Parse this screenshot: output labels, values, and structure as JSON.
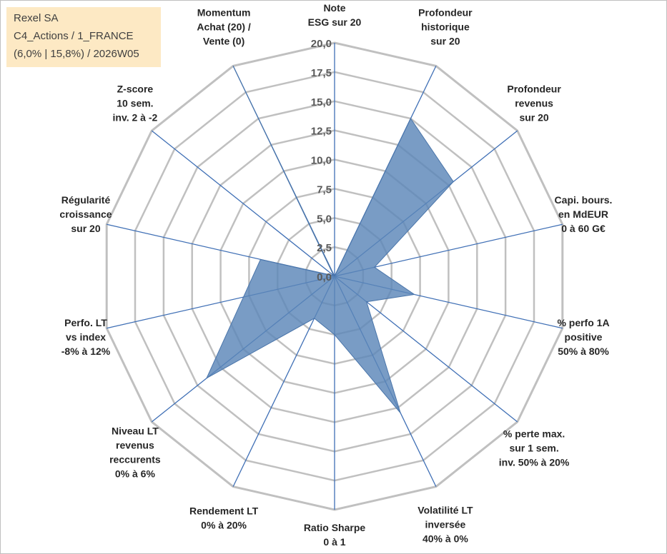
{
  "info": {
    "line1": "Rexel SA",
    "line2": "C4_Actions / 1_FRANCE",
    "line3": "(6,0% | 15,8%) / 2026W05"
  },
  "colors": {
    "grid": "#c0c0c0",
    "spokes": "#3f6fb5",
    "area_fill": "#5b86b8",
    "area_stroke": "#4a75aa",
    "info_bg": "#fde9c4"
  },
  "chart_data": {
    "type": "radar",
    "title": "",
    "r_ticks": [
      "0,0",
      "2,5",
      "5,0",
      "7,5",
      "10,0",
      "12,5",
      "15,0",
      "17,5",
      "20,0"
    ],
    "rlim": [
      0,
      20
    ],
    "grid": true,
    "axes": [
      [
        "Note",
        "ESG sur 20"
      ],
      [
        "Profondeur",
        "historique",
        "sur 20"
      ],
      [
        "Profondeur",
        "revenus",
        "sur 20"
      ],
      [
        "Capi. bours.",
        "en MdEUR",
        "0 à 60 G€"
      ],
      [
        "% perfo 1A",
        "positive",
        "50% à 80%"
      ],
      [
        "% perte max.",
        "sur 1 sem.",
        "inv. 50% à 20%"
      ],
      [
        "Volatilité LT",
        "inversée",
        "40% à 0%"
      ],
      [
        "Ratio Sharpe",
        "0 à 1"
      ],
      [
        "Rendement LT",
        "0% à 20%"
      ],
      [
        "Niveau LT",
        "revenus",
        "reccurents",
        "0% à 6%"
      ],
      [
        "Perfo. LT",
        "vs index",
        "-8% à 12%"
      ],
      [
        "Régularité",
        "croissance",
        "sur 20"
      ],
      [
        "Z-score",
        "10 sem.",
        "inv. 2 à -2"
      ],
      [
        "Momentum",
        "Achat (20) /",
        "Vente (0)"
      ]
    ],
    "values": [
      0,
      15,
      13,
      3.5,
      7,
      3.5,
      13,
      5,
      4,
      14,
      8,
      6.5,
      0.1,
      20
    ]
  }
}
